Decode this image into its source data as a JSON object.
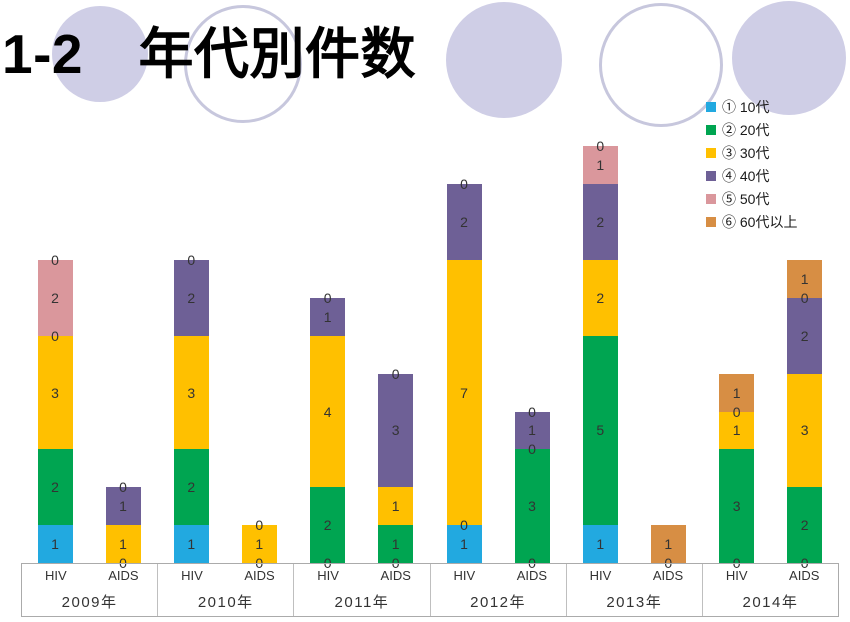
{
  "title": "1-2　年代別件数",
  "legend": {
    "items": [
      {
        "label": "①  10代",
        "color": "#22A9E0"
      },
      {
        "label": "②  20代",
        "color": "#00A551"
      },
      {
        "label": "③  30代",
        "color": "#FFC000"
      },
      {
        "label": "④  40代",
        "color": "#6E6096"
      },
      {
        "label": "⑤  50代",
        "color": "#DA979C"
      },
      {
        "label": "⑥  60代以上",
        "color": "#D78E44"
      }
    ]
  },
  "chart_data": {
    "type": "bar",
    "stacked": true,
    "title": "1-2　年代別件数",
    "ylim": [
      0,
      11
    ],
    "grid": false,
    "legend_position": "top-right",
    "value_labels": "on segments; zero values labeled 0 at segment boundary",
    "series_names": [
      "① 10代",
      "② 20代",
      "③ 30代",
      "④ 40代",
      "⑤ 50代",
      "⑥ 60代以上"
    ],
    "series_colors": [
      "#22A9E0",
      "#00A551",
      "#FFC000",
      "#6E6096",
      "#DA979C",
      "#D78E44"
    ],
    "sub_categories": [
      "HIV",
      "AIDS"
    ],
    "groups": [
      {
        "year": "2009年",
        "bars": [
          {
            "label": "HIV",
            "values": [
              1,
              2,
              3,
              0,
              2,
              0
            ]
          },
          {
            "label": "AIDS",
            "values": [
              0,
              0,
              1,
              1,
              0,
              0
            ]
          }
        ]
      },
      {
        "year": "2010年",
        "bars": [
          {
            "label": "HIV",
            "values": [
              1,
              2,
              3,
              2,
              0,
              0
            ]
          },
          {
            "label": "AIDS",
            "values": [
              0,
              0,
              1,
              0,
              0,
              0
            ]
          }
        ]
      },
      {
        "year": "2011年",
        "bars": [
          {
            "label": "HIV",
            "values": [
              0,
              2,
              4,
              1,
              0,
              0
            ]
          },
          {
            "label": "AIDS",
            "values": [
              0,
              1,
              1,
              3,
              0,
              0
            ]
          }
        ]
      },
      {
        "year": "2012年",
        "bars": [
          {
            "label": "HIV",
            "values": [
              1,
              0,
              7,
              2,
              0,
              0
            ]
          },
          {
            "label": "AIDS",
            "values": [
              0,
              3,
              0,
              1,
              0,
              0
            ]
          }
        ]
      },
      {
        "year": "2013年",
        "bars": [
          {
            "label": "HIV",
            "values": [
              1,
              5,
              2,
              2,
              1,
              0
            ]
          },
          {
            "label": "AIDS",
            "values": [
              0,
              0,
              0,
              0,
              0,
              1
            ]
          }
        ]
      },
      {
        "year": "2014年",
        "bars": [
          {
            "label": "HIV",
            "values": [
              0,
              3,
              1,
              0,
              0,
              1
            ]
          },
          {
            "label": "AIDS",
            "values": [
              0,
              2,
              3,
              2,
              0,
              1
            ]
          }
        ]
      }
    ]
  }
}
